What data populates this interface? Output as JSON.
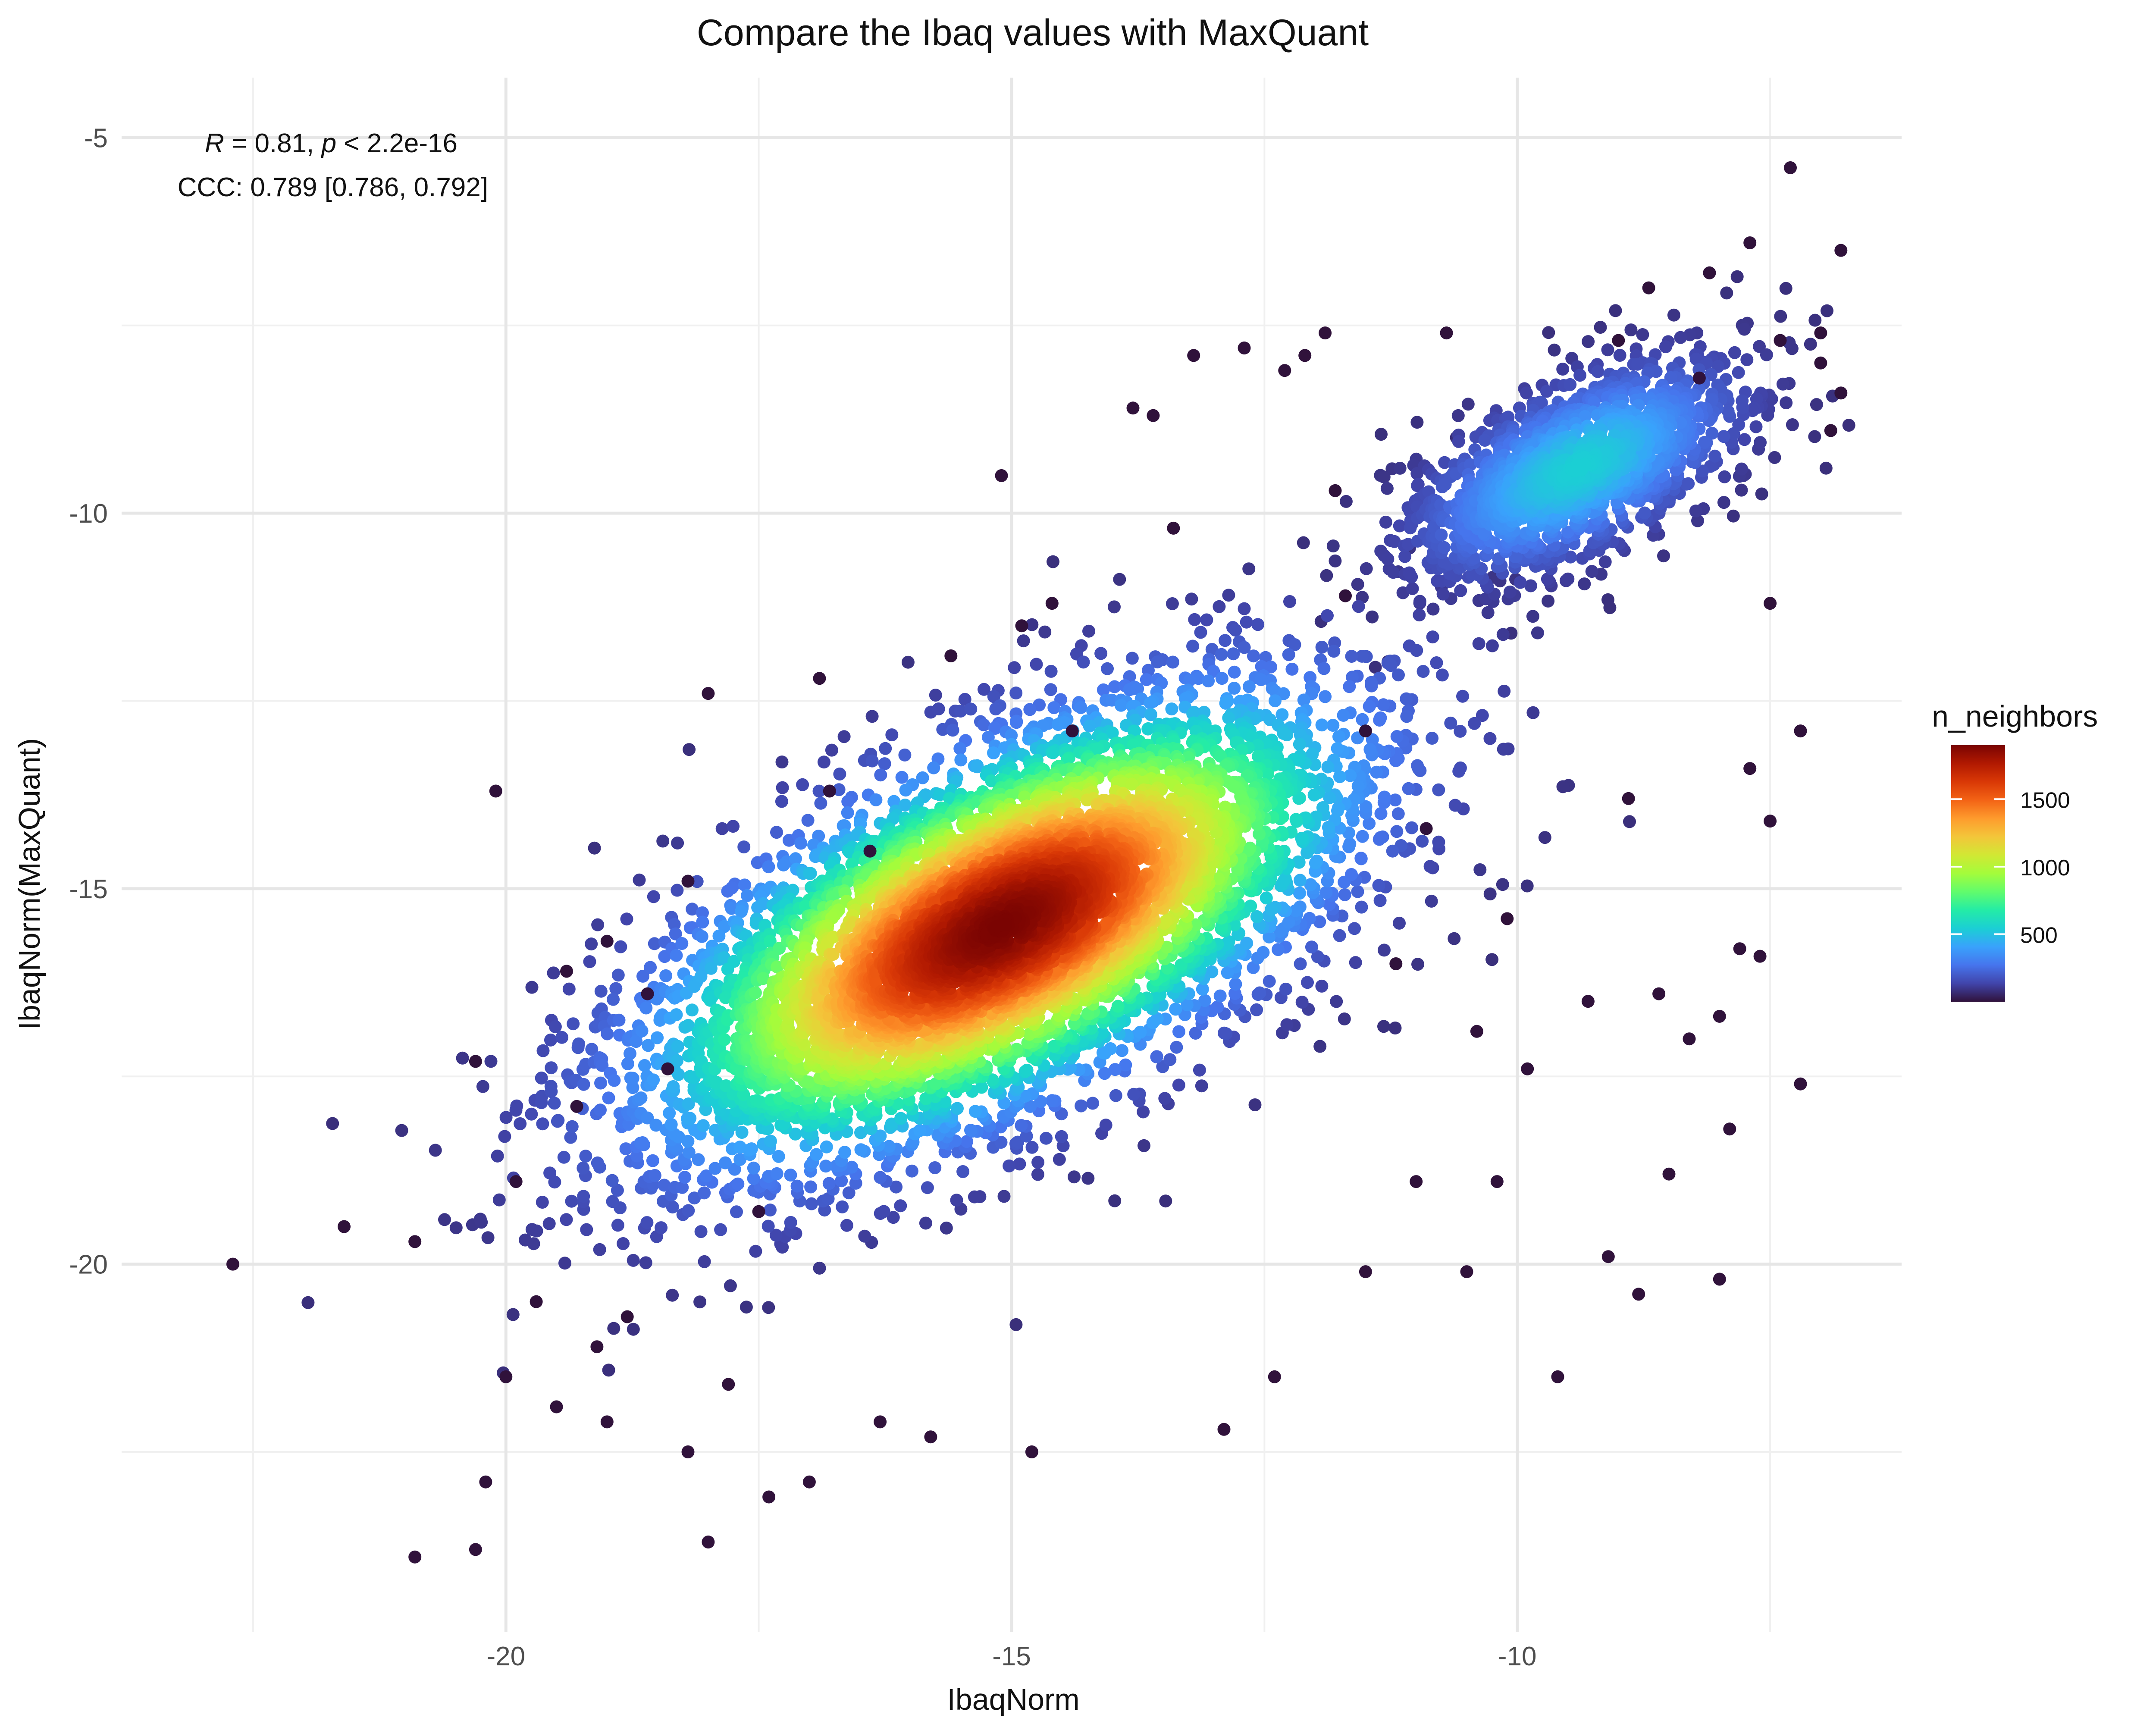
{
  "chart_data": {
    "type": "scatter",
    "title": "Compare the Ibaq values with MaxQuant",
    "xlabel": "IbaqNorm",
    "ylabel": "IbaqNorm(MaxQuant)",
    "xlim": [
      -23.8,
      -6.2
    ],
    "ylim": [
      -24.9,
      -4.2
    ],
    "x_ticks": [
      -20,
      -15,
      -10
    ],
    "y_ticks": [
      -5,
      -10,
      -15,
      -20
    ],
    "grid": true,
    "annotation": {
      "line1_r_label": "R",
      "line1_r_value": " = 0.81, ",
      "line1_p_label": "p",
      "line1_p_value": " < 2.2e-16",
      "line2": "CCC: 0.789 [0.786, 0.792]"
    },
    "legend": {
      "title": "n_neighbors",
      "placement": "right",
      "range": [
        0,
        1900
      ],
      "ticks": [
        500,
        1000,
        1500
      ],
      "colormap": [
        "#30123b",
        "#4145ab",
        "#4675ed",
        "#39a2fc",
        "#1bcfd4",
        "#24eca6",
        "#61fc6c",
        "#a4fc3b",
        "#d1e834",
        "#f3c63a",
        "#fe9b2d",
        "#f36315",
        "#d93806",
        "#b11901",
        "#7a0402"
      ]
    },
    "density_model": {
      "center": [
        -15.1,
        -15.5
      ],
      "slope": 0.82,
      "major_sd": 2.1,
      "minor_sd": 1.0
    },
    "series": [
      {
        "x": [
          -22.7,
          -21.6,
          -20.9,
          -20.9,
          -20.3,
          -20.3,
          -20.2,
          -20.1,
          -20.0,
          -19.9,
          -19.7,
          -19.5,
          -19.4,
          -19.3,
          -19.1,
          -19.0,
          -19.0,
          -18.8,
          -18.6,
          -18.4,
          -18.2,
          -18.2,
          -18.0,
          -18.0,
          -17.8,
          -17.5,
          -17.4,
          -17.0,
          -16.9,
          -16.8,
          -16.4,
          -16.3,
          -15.8,
          -15.6,
          -15.1,
          -14.9,
          -14.8,
          -14.6,
          -14.4,
          -13.8,
          -13.6,
          -13.4,
          -13.2,
          -12.9,
          -12.7,
          -12.4,
          -12.3,
          -12.1,
          -11.9,
          -11.8,
          -11.7,
          -11.5,
          -11.5,
          -11.2,
          -11.0,
          -10.9,
          -10.7,
          -10.5,
          -10.4,
          -10.2,
          -10.1,
          -9.9,
          -9.6,
          -9.3,
          -9.1,
          -9.0,
          -8.9,
          -8.8,
          -8.7,
          -8.6,
          -8.5,
          -8.3,
          -8.2,
          -8.1,
          -8.0,
          -8.0,
          -7.9,
          -7.8,
          -7.7,
          -7.7,
          -7.6,
          -7.5,
          -7.5,
          -7.4,
          -7.3,
          -7.2,
          -7.2,
          -7.0,
          -7.0,
          -6.9,
          -6.8,
          -6.8
        ],
        "y": [
          -20.0,
          -19.5,
          -19.7,
          -23.9,
          -23.8,
          -17.3,
          -22.9,
          -13.7,
          -21.5,
          -18.9,
          -20.5,
          -21.9,
          -16.1,
          -17.9,
          -21.1,
          -15.7,
          -22.1,
          -20.7,
          -16.4,
          -17.4,
          -14.9,
          -22.5,
          -23.7,
          -12.4,
          -21.6,
          -19.3,
          -23.1,
          -22.9,
          -12.2,
          -13.7,
          -14.5,
          -22.1,
          -22.3,
          -11.9,
          -9.5,
          -11.5,
          -22.5,
          -11.2,
          -12.9,
          -8.6,
          -8.7,
          -10.2,
          -7.9,
          -22.2,
          -7.8,
          -21.5,
          -8.1,
          -7.9,
          -7.6,
          -9.7,
          -11.1,
          -20.1,
          -12.9,
          -16.0,
          -18.9,
          -14.2,
          -7.6,
          -20.1,
          -16.9,
          -18.9,
          -15.4,
          -17.4,
          -21.5,
          -16.5,
          -19.9,
          -7.7,
          -13.8,
          -20.4,
          -7.0,
          -16.4,
          -18.8,
          -17.0,
          -8.2,
          -6.8,
          -16.7,
          -20.2,
          -18.2,
          -15.8,
          -13.4,
          -6.4,
          -15.9,
          -14.1,
          -11.2,
          -7.7,
          -5.4,
          -12.9,
          -17.6,
          -8.0,
          -7.6,
          -8.9,
          -6.5,
          -8.4
        ]
      }
    ]
  }
}
